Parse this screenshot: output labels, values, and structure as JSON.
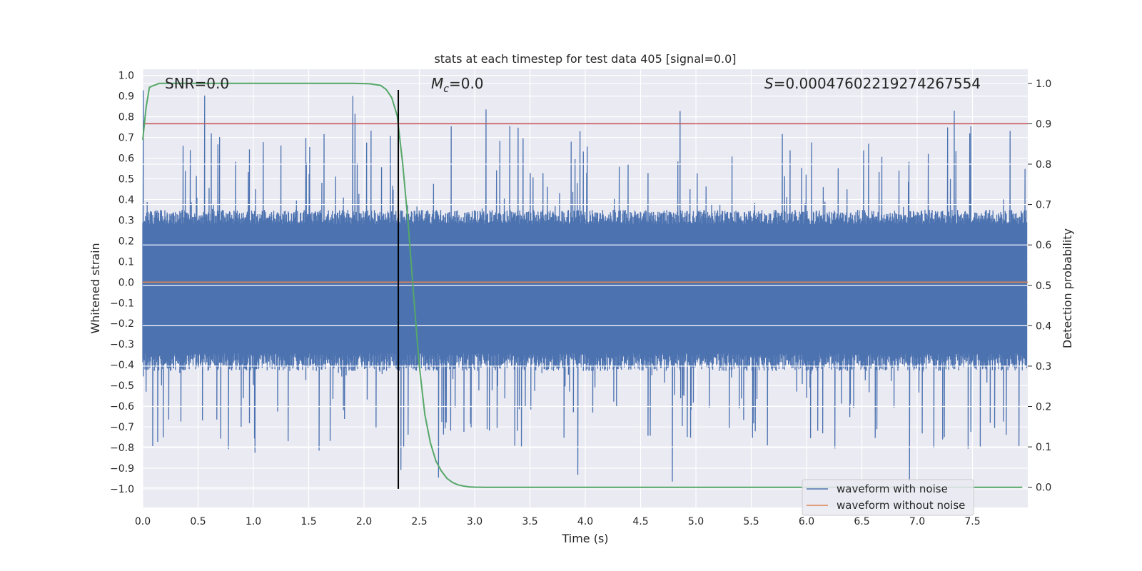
{
  "chart_data": {
    "type": "line",
    "title": "stats at each timestep for test data 405 [signal=0.0]",
    "xlabel": "Time (s)",
    "ylabel": "Whitened strain",
    "y2label": "Detection probability",
    "xlim": [
      0.0,
      8.0
    ],
    "ylim": [
      -1.09,
      1.03
    ],
    "y2lim": [
      -0.05,
      1.035
    ],
    "xticks": [
      "0.0",
      "0.5",
      "1.0",
      "1.5",
      "2.0",
      "2.5",
      "3.0",
      "3.5",
      "4.0",
      "4.5",
      "5.0",
      "5.5",
      "6.0",
      "6.5",
      "7.0",
      "7.5"
    ],
    "yticks": [
      "1.0",
      "0.9",
      "0.8",
      "0.7",
      "0.6",
      "0.5",
      "0.4",
      "0.3",
      "0.2",
      "0.1",
      "0.0",
      "−0.1",
      "−0.2",
      "−0.3",
      "−0.4",
      "−0.5",
      "−0.6",
      "−0.7",
      "−0.8",
      "−0.9",
      "−1.0"
    ],
    "y2ticks": [
      "1.0",
      "0.9",
      "0.8",
      "0.7",
      "0.6",
      "0.5",
      "0.4",
      "0.3",
      "0.2",
      "0.1",
      "0.0"
    ],
    "annotations": {
      "snr": "SNR=0.0",
      "mc_symbol": "M",
      "mc_sub": "c",
      "mc_value": "=0.0",
      "s_symbol": "S",
      "s_value": "=0.00047602219274267554"
    },
    "legend": {
      "location": "lower-right",
      "entries": [
        "waveform with noise",
        "waveform without noise"
      ]
    },
    "series": [
      {
        "name": "waveform with noise",
        "color": "#4c72b0",
        "noise_model": {
          "band_low": -0.43,
          "band_high": 0.35,
          "spike_min": -1.0,
          "spike_max": 0.93,
          "samples": 1600
        }
      },
      {
        "name": "waveform without noise",
        "color": "#dd8452",
        "value": 0.0
      },
      {
        "name": "detection probability",
        "color": "#55a868",
        "axis": "right",
        "x": [
          0.0,
          0.03,
          0.06,
          0.1,
          0.15,
          0.3,
          0.6,
          1.0,
          1.5,
          1.9,
          2.05,
          2.15,
          2.2,
          2.25,
          2.3,
          2.35,
          2.4,
          2.45,
          2.5,
          2.55,
          2.6,
          2.65,
          2.7,
          2.75,
          2.8,
          2.85,
          2.9,
          2.95,
          3.0,
          3.1,
          3.3,
          4.0,
          5.0,
          6.0,
          7.0,
          7.95
        ],
        "y": [
          0.86,
          0.94,
          0.99,
          0.995,
          1.0,
          1.0,
          1.0,
          1.0,
          1.0,
          1.0,
          0.999,
          0.995,
          0.985,
          0.965,
          0.92,
          0.8,
          0.65,
          0.47,
          0.3,
          0.18,
          0.11,
          0.065,
          0.04,
          0.022,
          0.012,
          0.006,
          0.003,
          0.001,
          0.0004,
          0.0,
          0.0,
          0.0,
          0.0,
          0.0,
          0.0,
          0.0
        ]
      },
      {
        "name": "threshold",
        "color": "#c44e52",
        "axis": "right",
        "value": 0.9
      },
      {
        "name": "marker",
        "color": "#000000",
        "x": 2.31,
        "ymin": -1.0,
        "ymax": 0.93
      }
    ]
  }
}
